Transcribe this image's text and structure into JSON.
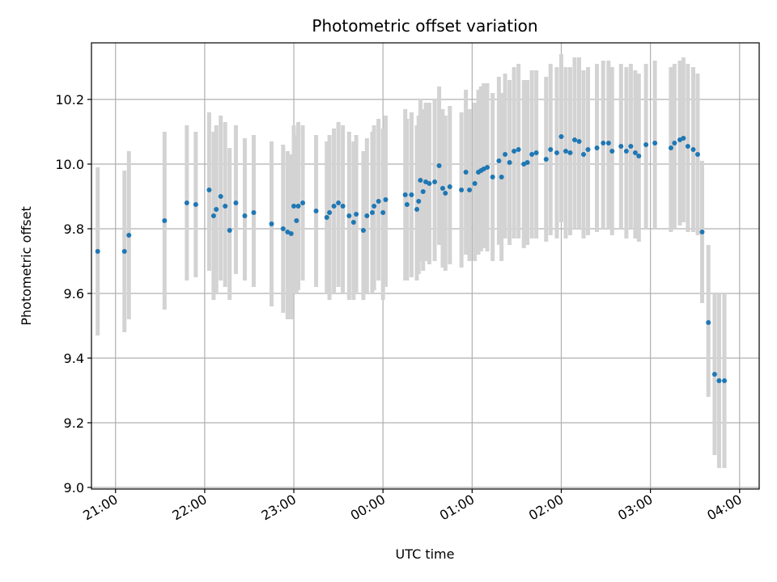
{
  "chart_data": {
    "type": "scatter",
    "title": "Photometric offset variation",
    "xlabel": "UTC time",
    "ylabel": "Photometric offset",
    "xlim": [
      -3.27,
      4.22
    ],
    "ylim": [
      8.995,
      10.375
    ],
    "xticks": [
      -3,
      -2,
      -1,
      0,
      1,
      2,
      3,
      4
    ],
    "xtick_labels": [
      "21:00",
      "22:00",
      "23:00",
      "00:00",
      "01:00",
      "02:00",
      "03:00",
      "04:00"
    ],
    "yticks": [
      9.0,
      9.2,
      9.4,
      9.6,
      9.8,
      10.0,
      10.2
    ],
    "ytick_labels": [
      "9.0",
      "9.2",
      "9.4",
      "9.6",
      "9.8",
      "10.0",
      "10.2"
    ],
    "grid": true,
    "colors": {
      "point": "#1f77b4",
      "errorbar": "#d3d3d3",
      "grid": "#b0b0b0"
    },
    "series": [
      {
        "x": [
          -3.2,
          -2.9,
          -2.85,
          -2.45,
          -2.2,
          -2.1,
          -1.95,
          -1.9,
          -1.87,
          -1.82,
          -1.77,
          -1.72,
          -1.65,
          -1.55,
          -1.45,
          -1.25,
          -1.12,
          -1.07,
          -1.03,
          -1.0,
          -0.97,
          -0.95,
          -0.9,
          -0.75,
          -0.63,
          -0.6,
          -0.55,
          -0.5,
          -0.45,
          -0.38,
          -0.33,
          -0.3,
          -0.22,
          -0.18,
          -0.12,
          -0.1,
          -0.05,
          0.0,
          0.03,
          0.25,
          0.27,
          0.32,
          0.38,
          0.4,
          0.42,
          0.45,
          0.48,
          0.52,
          0.58,
          0.63,
          0.67,
          0.7,
          0.75,
          0.88,
          0.93,
          0.97,
          1.03,
          1.07,
          1.1,
          1.13,
          1.17,
          1.23,
          1.3,
          1.33,
          1.37,
          1.42,
          1.47,
          1.52,
          1.58,
          1.62,
          1.67,
          1.72,
          1.83,
          1.88,
          1.95,
          2.0,
          2.05,
          2.1,
          2.15,
          2.2,
          2.25,
          2.3,
          2.4,
          2.47,
          2.53,
          2.57,
          2.67,
          2.73,
          2.78,
          2.83,
          2.87,
          2.95,
          3.05,
          3.23,
          3.27,
          3.33,
          3.37,
          3.42,
          3.48,
          3.53,
          3.58,
          3.65,
          3.72,
          3.77,
          3.83
        ],
        "y": [
          9.73,
          9.73,
          9.78,
          9.825,
          9.88,
          9.875,
          9.92,
          9.84,
          9.86,
          9.9,
          9.87,
          9.795,
          9.88,
          9.84,
          9.85,
          9.815,
          9.8,
          9.79,
          9.785,
          9.87,
          9.825,
          9.87,
          9.88,
          9.855,
          9.835,
          9.85,
          9.87,
          9.88,
          9.87,
          9.84,
          9.82,
          9.845,
          9.795,
          9.84,
          9.85,
          9.87,
          9.885,
          9.85,
          9.89,
          9.905,
          9.875,
          9.905,
          9.86,
          9.885,
          9.95,
          9.915,
          9.945,
          9.94,
          9.945,
          9.995,
          9.925,
          9.91,
          9.93,
          9.92,
          9.975,
          9.92,
          9.94,
          9.975,
          9.98,
          9.985,
          9.99,
          9.96,
          10.01,
          9.96,
          10.03,
          10.005,
          10.04,
          10.045,
          10.0,
          10.005,
          10.03,
          10.035,
          10.015,
          10.045,
          10.035,
          10.085,
          10.04,
          10.035,
          10.075,
          10.07,
          10.03,
          10.045,
          10.05,
          10.065,
          10.065,
          10.04,
          10.055,
          10.04,
          10.055,
          10.035,
          10.025,
          10.06,
          10.065,
          10.05,
          10.065,
          10.075,
          10.08,
          10.055,
          10.045,
          10.03,
          9.79,
          9.51,
          9.35,
          9.33,
          9.33
        ],
        "yerr_low": [
          9.47,
          9.48,
          9.52,
          9.55,
          9.64,
          9.65,
          9.67,
          9.58,
          9.6,
          9.64,
          9.62,
          9.58,
          9.66,
          9.64,
          9.62,
          9.56,
          9.54,
          9.52,
          9.52,
          9.6,
          9.6,
          9.61,
          9.64,
          9.62,
          9.6,
          9.58,
          9.6,
          9.62,
          9.6,
          9.58,
          9.58,
          9.6,
          9.58,
          9.6,
          9.6,
          9.61,
          9.64,
          9.58,
          9.62,
          9.64,
          9.64,
          9.65,
          9.64,
          9.66,
          9.7,
          9.67,
          9.7,
          9.69,
          9.7,
          9.75,
          9.68,
          9.67,
          9.69,
          9.68,
          9.72,
          9.7,
          9.7,
          9.72,
          9.73,
          9.74,
          9.73,
          9.7,
          9.75,
          9.7,
          9.77,
          9.75,
          9.77,
          9.77,
          9.74,
          9.75,
          9.77,
          9.77,
          9.76,
          9.78,
          9.77,
          9.82,
          9.77,
          9.78,
          9.8,
          9.8,
          9.77,
          9.78,
          9.79,
          9.8,
          9.8,
          9.78,
          9.8,
          9.77,
          9.8,
          9.77,
          9.76,
          9.8,
          9.8,
          9.79,
          9.8,
          9.81,
          9.82,
          9.79,
          9.79,
          9.78,
          9.57,
          9.28,
          9.1,
          9.06,
          9.06
        ],
        "yerr_high": [
          9.99,
          9.98,
          10.04,
          10.1,
          10.12,
          10.1,
          10.16,
          10.1,
          10.12,
          10.15,
          10.13,
          10.05,
          10.12,
          10.08,
          10.09,
          10.07,
          10.06,
          10.04,
          10.03,
          10.12,
          10.09,
          10.13,
          10.12,
          10.09,
          10.07,
          10.09,
          10.11,
          10.13,
          10.12,
          10.1,
          10.07,
          10.09,
          10.04,
          10.08,
          10.1,
          10.12,
          10.14,
          10.11,
          10.15,
          10.17,
          10.14,
          10.16,
          10.12,
          10.15,
          10.2,
          10.17,
          10.19,
          10.19,
          10.2,
          10.24,
          10.17,
          10.15,
          10.18,
          10.16,
          10.23,
          10.17,
          10.19,
          10.23,
          10.24,
          10.25,
          10.25,
          10.22,
          10.27,
          10.22,
          10.28,
          10.26,
          10.3,
          10.31,
          10.26,
          10.26,
          10.29,
          10.29,
          10.27,
          10.31,
          10.3,
          10.34,
          10.3,
          10.3,
          10.33,
          10.33,
          10.29,
          10.3,
          10.31,
          10.32,
          10.32,
          10.3,
          10.31,
          10.3,
          10.31,
          10.29,
          10.28,
          10.31,
          10.32,
          10.3,
          10.31,
          10.32,
          10.33,
          10.31,
          10.3,
          10.28,
          10.01,
          9.75,
          9.6,
          9.6,
          9.6
        ]
      }
    ]
  }
}
